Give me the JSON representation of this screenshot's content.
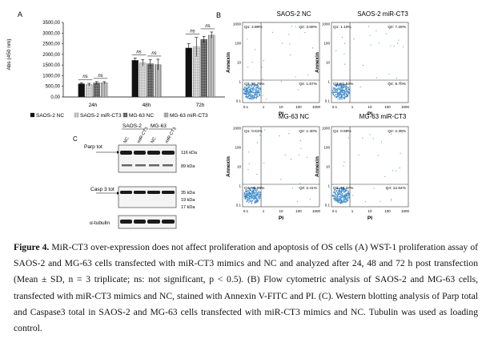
{
  "figure": {
    "panel_labels": {
      "a": "A",
      "b": "B",
      "c": "C"
    },
    "caption": {
      "label": "Figure 4.",
      "text": "MiR-CT3 over-expression does not affect proliferation and apoptosis of OS cells (A) WST-1 proliferation assay of SAOS-2 and MG-63 cells transfected with miR-CT3 mimics and NC and analyzed after 24, 48 and 72 h post transfection (Mean ± SD, n = 3 triplicate; ns: not significant, p < 0.5). (B) Flow cytometric analysis of SAOS-2 and MG-63 cells, transfected with miR-CT3 mimics and NC, stained with Annexin V-FITC and PI. (C). Western blotting analysis of Parp total and Caspase3 total in SAOS-2 and MG-63 cells transfected with miR-CT3 mimics and NC. Tubulin was used as loading control."
    }
  },
  "chart_data": [
    {
      "type": "bar",
      "title": "",
      "ylabel": "Abs (450 nm)",
      "xlabel": "",
      "ylim": [
        0,
        3500
      ],
      "yticks": [
        "0,00",
        "500,00",
        "1000,00",
        "1500,00",
        "2000,00",
        "2500,00",
        "3000,00",
        "3500,00"
      ],
      "categories": [
        "24h",
        "48h",
        "72h"
      ],
      "series": [
        {
          "name": "SAOS-2 NC",
          "color": "#111111",
          "values": [
            620,
            1720,
            2300
          ],
          "errors": [
            50,
            110,
            200
          ]
        },
        {
          "name": "SAOS-2 miR-CT3",
          "color": "#c8c8c8",
          "values": [
            580,
            1600,
            2350
          ],
          "errors": [
            60,
            150,
            450
          ]
        },
        {
          "name": "MG-63 NC",
          "color": "#7a7a7a",
          "values": [
            660,
            1560,
            2700
          ],
          "errors": [
            60,
            200,
            150
          ]
        },
        {
          "name": "MG-63 miR-CT3",
          "color": "#b0b0b0",
          "values": [
            670,
            1520,
            2900
          ],
          "errors": [
            50,
            250,
            150
          ]
        }
      ],
      "annotations": [
        "ns",
        "ns",
        "ns",
        "ns",
        "ns",
        "ns"
      ]
    },
    {
      "type": "scatter",
      "panel": "B",
      "xlabel": "PI",
      "ylabel": "Annexin",
      "x_ticks": [
        "0.1",
        "1",
        "10",
        "100",
        "1000"
      ],
      "y_ticks": [
        "1000",
        "100",
        "10",
        "1",
        "0.1"
      ],
      "plots": [
        {
          "title": "SAOS-2 NC",
          "q1": "Q1: 2.89%",
          "q2": "Q2: 3.69%",
          "q3": "Q3: 91.75%",
          "q4": "Q4: 1.67%"
        },
        {
          "title": "SAOS-2 miR-CT3",
          "q1": "Q1: 1.10%",
          "q2": "Q2: 7.29%",
          "q3": "Q3: 81.92%",
          "q4": "Q4: 9.70%"
        },
        {
          "title": "MG-63 NC",
          "q1": "Q1: 0.61%",
          "q2": "Q2: 1.40%",
          "q3": "Q3: 95.59%",
          "q4": "Q4: 2.41%"
        },
        {
          "title": "MG-63 miR-CT3",
          "q1": "Q1: 0.59%",
          "q2": "Q2: 2.39%",
          "q3": "Q3: 84.37%",
          "q4": "Q4: 12.64%"
        }
      ]
    }
  ],
  "blot": {
    "groups": [
      "SAOS-2",
      "MG-63"
    ],
    "lanes": [
      "NC",
      "miR-CT3",
      "NC",
      "miR-CT3"
    ],
    "rows": [
      {
        "label": "Parp tot",
        "markers": [
          "116 kDa",
          "89 kDa"
        ]
      },
      {
        "label": "Casp 3 tot",
        "markers": [
          "35 kDa",
          "19 kDa",
          "17 kDa"
        ]
      },
      {
        "label": "α-tubulin",
        "markers": []
      }
    ]
  }
}
